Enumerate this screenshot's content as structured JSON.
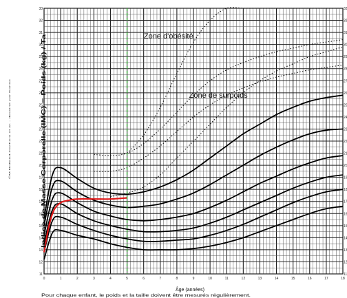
{
  "chart_data": {
    "type": "line",
    "title": "",
    "ylabel": "Indice de Masse Corporelle (IMC) = Poids (kg) / Ta",
    "xlabel": "Âge (années)",
    "side_note": "©M.Rolland-Cachera et al. - dessiné par Karine",
    "footnote": "Pour chaque enfant, le poids et la taille doivent être mesurés régulièrement.",
    "xlim": [
      0,
      18
    ],
    "ylim": [
      11,
      33
    ],
    "x_ticks": [
      "0",
      "1",
      "2",
      "3",
      "4",
      "5",
      "6",
      "7",
      "8",
      "9",
      "10",
      "11",
      "12",
      "13",
      "14",
      "15",
      "16",
      "17",
      "18"
    ],
    "y_ticks": [
      "11",
      "12",
      "13",
      "14",
      "15",
      "16",
      "17",
      "18",
      "19",
      "20",
      "21",
      "22",
      "23",
      "24",
      "25",
      "26",
      "27",
      "28",
      "29",
      "30",
      "31",
      "32",
      "33"
    ],
    "grid": true,
    "annotations": [
      {
        "text": "Zone d'obésité",
        "x": 7.5,
        "y": 30.5
      },
      {
        "text": "Zone de surpoids",
        "x": 10.5,
        "y": 25.6
      }
    ],
    "vertical_marker": {
      "x": 5,
      "color": "#2aa52a",
      "style": "dashed"
    },
    "series": [
      {
        "style": "solid",
        "x": [
          0,
          0.5,
          1,
          2,
          3,
          4,
          5,
          6,
          7,
          8,
          9,
          10,
          11,
          12,
          13,
          14,
          15,
          16,
          17,
          18
        ],
        "y": [
          12.2,
          14.4,
          14.6,
          14.2,
          13.9,
          13.5,
          13.2,
          13.0,
          13.0,
          13.0,
          13.1,
          13.3,
          13.6,
          14.0,
          14.5,
          15.0,
          15.5,
          16.0,
          16.4,
          16.6
        ]
      },
      {
        "style": "solid",
        "x": [
          0,
          0.5,
          1,
          2,
          3,
          4,
          5,
          6,
          7,
          8,
          9,
          10,
          11,
          12,
          13,
          14,
          15,
          16,
          17,
          18
        ],
        "y": [
          12.8,
          15.4,
          15.7,
          15.1,
          14.6,
          14.2,
          13.9,
          13.7,
          13.7,
          13.8,
          13.9,
          14.2,
          14.6,
          15.1,
          15.7,
          16.3,
          16.9,
          17.4,
          17.8,
          18.0
        ]
      },
      {
        "style": "solid",
        "x": [
          0,
          0.5,
          1,
          2,
          3,
          4,
          5,
          6,
          7,
          8,
          9,
          10,
          11,
          12,
          13,
          14,
          15,
          16,
          17,
          18
        ],
        "y": [
          13.5,
          16.3,
          16.8,
          16.0,
          15.4,
          15.0,
          14.7,
          14.5,
          14.5,
          14.6,
          14.8,
          15.2,
          15.7,
          16.3,
          16.9,
          17.5,
          18.1,
          18.6,
          19.0,
          19.2
        ]
      },
      {
        "style": "solid",
        "x": [
          0,
          0.5,
          1,
          2,
          3,
          4,
          5,
          6,
          7,
          8,
          9,
          10,
          11,
          12,
          13,
          14,
          15,
          16,
          17,
          18
        ],
        "y": [
          14.2,
          17.2,
          17.7,
          16.9,
          16.2,
          15.8,
          15.5,
          15.4,
          15.5,
          15.7,
          16.0,
          16.5,
          17.1,
          17.8,
          18.5,
          19.1,
          19.7,
          20.2,
          20.6,
          20.8
        ]
      },
      {
        "style": "solid",
        "x": [
          0,
          0.5,
          1,
          2,
          3,
          4,
          5,
          6,
          7,
          8,
          9,
          10,
          11,
          12,
          13,
          14,
          15,
          16,
          17,
          18
        ],
        "y": [
          15.0,
          18.2,
          18.7,
          17.8,
          17.1,
          16.7,
          16.5,
          16.6,
          16.8,
          17.2,
          17.7,
          18.4,
          19.2,
          20.0,
          20.8,
          21.5,
          22.1,
          22.6,
          22.9,
          23.0
        ]
      },
      {
        "style": "solid",
        "x": [
          0,
          0.5,
          1,
          2,
          3,
          4,
          5,
          6,
          7,
          8,
          9,
          10,
          11,
          12,
          13,
          14,
          15,
          16,
          17,
          18
        ],
        "y": [
          15.6,
          19.2,
          19.8,
          18.9,
          18.1,
          17.7,
          17.6,
          17.8,
          18.2,
          18.8,
          19.6,
          20.6,
          21.6,
          22.6,
          23.4,
          24.2,
          24.8,
          25.3,
          25.6,
          25.8
        ]
      },
      {
        "style": "dotted",
        "x": [
          3,
          4,
          5,
          6,
          7,
          8,
          9,
          10,
          11,
          12,
          13,
          14,
          15,
          16,
          17,
          18
        ],
        "y": [
          20.9,
          20.8,
          21.0,
          21.8,
          23.0,
          24.4,
          25.8,
          27.0,
          27.9,
          28.5,
          29.0,
          29.4,
          29.7,
          30.0,
          30.2,
          30.4
        ]
      },
      {
        "style": "dotted",
        "x": [
          3,
          4,
          5,
          6,
          7,
          8,
          9,
          10,
          11,
          12,
          13,
          14,
          15,
          16,
          17,
          18
        ],
        "y": [
          19.5,
          19.5,
          19.8,
          20.6,
          21.6,
          22.8,
          24.0,
          25.0,
          25.8,
          26.4,
          26.9,
          27.3,
          27.6,
          27.9,
          28.1,
          28.3
        ]
      },
      {
        "style": "dotted",
        "x": [
          5,
          6,
          7,
          8,
          9,
          10,
          11,
          12,
          13,
          14,
          15,
          16,
          17,
          18
        ],
        "y": [
          21.0,
          22.5,
          24.8,
          27.6,
          30.2,
          32.0,
          33.0,
          33.0,
          33.0,
          33.0,
          33.0,
          33.0,
          33.0,
          33.0
        ]
      },
      {
        "style": "dotted",
        "x": [
          4,
          5,
          6,
          7,
          8,
          9,
          10,
          11,
          12,
          13,
          14,
          15,
          16,
          17,
          18
        ],
        "y": [
          17.4,
          17.7,
          18.2,
          19.2,
          20.6,
          22.0,
          23.4,
          24.8,
          26.0,
          27.0,
          27.8,
          28.4,
          29.0,
          29.4,
          29.8
        ]
      },
      {
        "style": "red",
        "color": "#e01818",
        "x": [
          0,
          0.3,
          0.6,
          1,
          1.5,
          2,
          3,
          4,
          5
        ],
        "y": [
          12.8,
          15.0,
          16.3,
          16.9,
          17.1,
          17.2,
          17.2,
          17.2,
          17.3
        ]
      }
    ]
  }
}
